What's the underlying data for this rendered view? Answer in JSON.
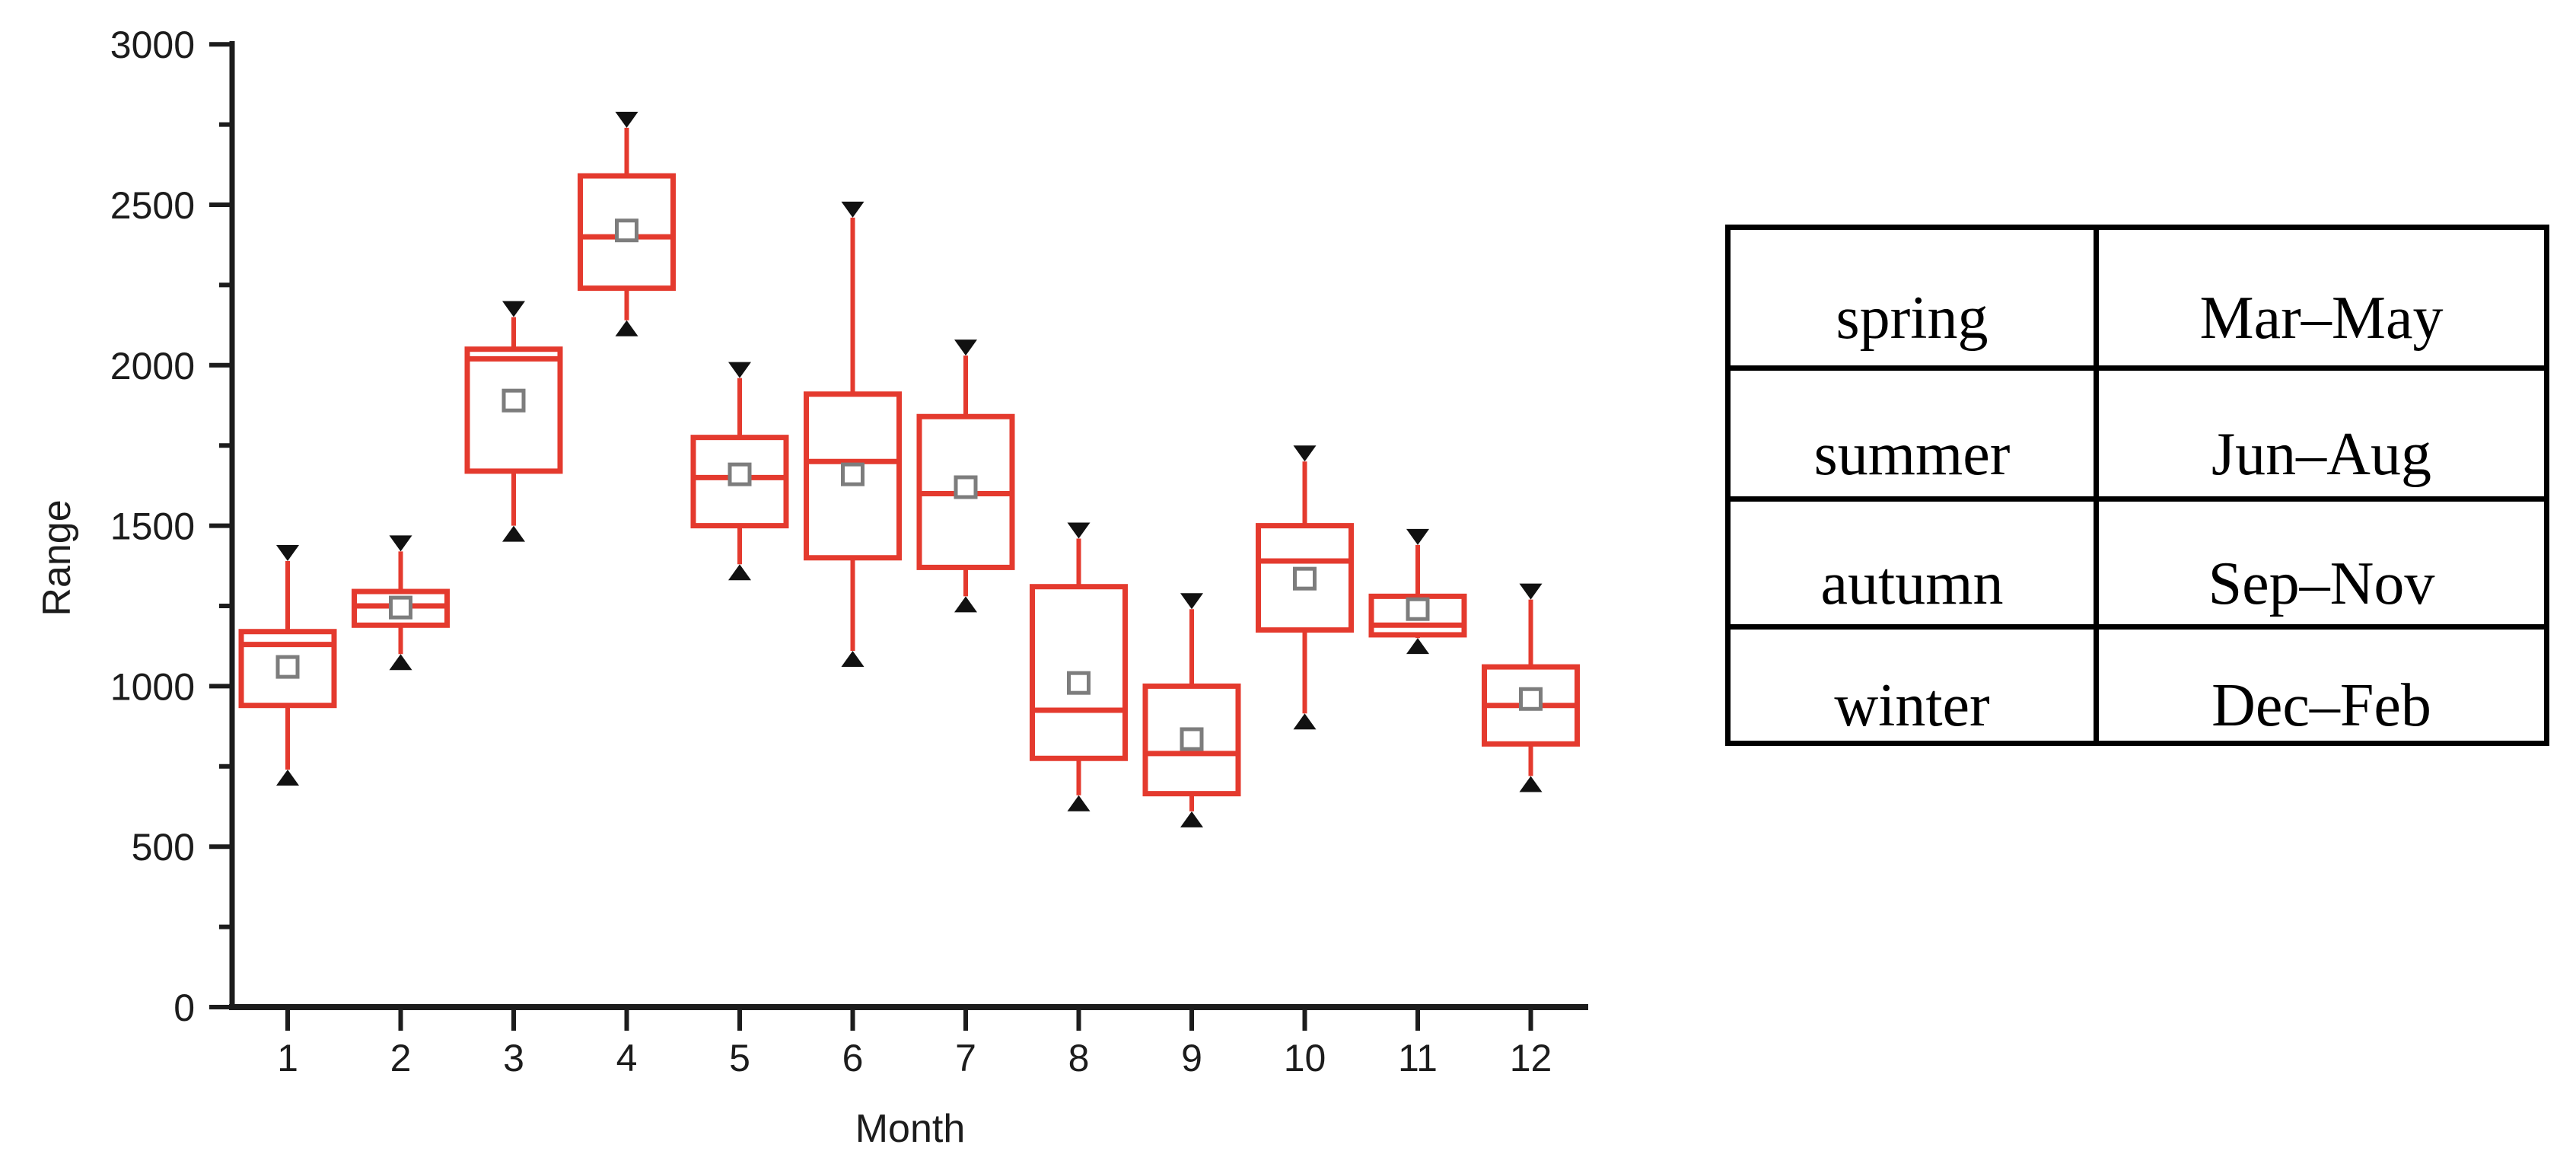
{
  "chart_data": {
    "type": "box",
    "title": "",
    "xlabel": "Month",
    "ylabel": "Range",
    "ylim": [
      0,
      3000
    ],
    "y_major_ticks": [
      0,
      500,
      1000,
      1500,
      2000,
      2500,
      3000
    ],
    "y_minor_ticks": [
      250,
      750,
      1250,
      1750,
      2250,
      2750
    ],
    "categories": [
      "1",
      "2",
      "3",
      "4",
      "5",
      "6",
      "7",
      "8",
      "9",
      "10",
      "11",
      "12"
    ],
    "legend": "none",
    "grid": false,
    "series": [
      {
        "month": "1",
        "whisker_low": 740,
        "q1": 940,
        "median": 1130,
        "mean": 1060,
        "q3": 1170,
        "whisker_high": 1390
      },
      {
        "month": "2",
        "whisker_low": 1100,
        "q1": 1190,
        "median": 1250,
        "mean": 1245,
        "q3": 1295,
        "whisker_high": 1420
      },
      {
        "month": "3",
        "whisker_low": 1500,
        "q1": 1670,
        "median": 2020,
        "mean": 1890,
        "q3": 2050,
        "whisker_high": 2150
      },
      {
        "month": "4",
        "whisker_low": 2140,
        "q1": 2240,
        "median": 2400,
        "mean": 2420,
        "q3": 2590,
        "whisker_high": 2740
      },
      {
        "month": "5",
        "whisker_low": 1380,
        "q1": 1500,
        "median": 1650,
        "mean": 1660,
        "q3": 1775,
        "whisker_high": 1960
      },
      {
        "month": "6",
        "whisker_low": 1110,
        "q1": 1400,
        "median": 1700,
        "mean": 1660,
        "q3": 1910,
        "whisker_high": 2460
      },
      {
        "month": "7",
        "whisker_low": 1280,
        "q1": 1370,
        "median": 1600,
        "mean": 1620,
        "q3": 1840,
        "whisker_high": 2030
      },
      {
        "month": "8",
        "whisker_low": 660,
        "q1": 775,
        "median": 925,
        "mean": 1010,
        "q3": 1310,
        "whisker_high": 1460
      },
      {
        "month": "9",
        "whisker_low": 610,
        "q1": 665,
        "median": 790,
        "mean": 835,
        "q3": 1000,
        "whisker_high": 1240
      },
      {
        "month": "10",
        "whisker_low": 915,
        "q1": 1175,
        "median": 1390,
        "mean": 1335,
        "q3": 1500,
        "whisker_high": 1700
      },
      {
        "month": "11",
        "whisker_low": 1150,
        "q1": 1160,
        "median": 1190,
        "mean": 1240,
        "q3": 1280,
        "whisker_high": 1440
      },
      {
        "month": "12",
        "whisker_low": 720,
        "q1": 820,
        "median": 940,
        "mean": 960,
        "q3": 1060,
        "whisker_high": 1270
      }
    ],
    "colors": {
      "box": "#e43a2e",
      "mean_marker": "#7d7d7d",
      "extreme_marker": "#111111",
      "axis": "#1c1c1c"
    },
    "marker_legend": {
      "triangle_down": "maximum",
      "triangle_up": "minimum",
      "open_square": "mean"
    }
  },
  "table": {
    "rows": [
      {
        "season": "spring",
        "months": "Mar–May"
      },
      {
        "season": "summer",
        "months": "Jun–Aug"
      },
      {
        "season": "autumn",
        "months": "Sep–Nov"
      },
      {
        "season": "winter",
        "months": "Dec–Feb"
      }
    ]
  }
}
